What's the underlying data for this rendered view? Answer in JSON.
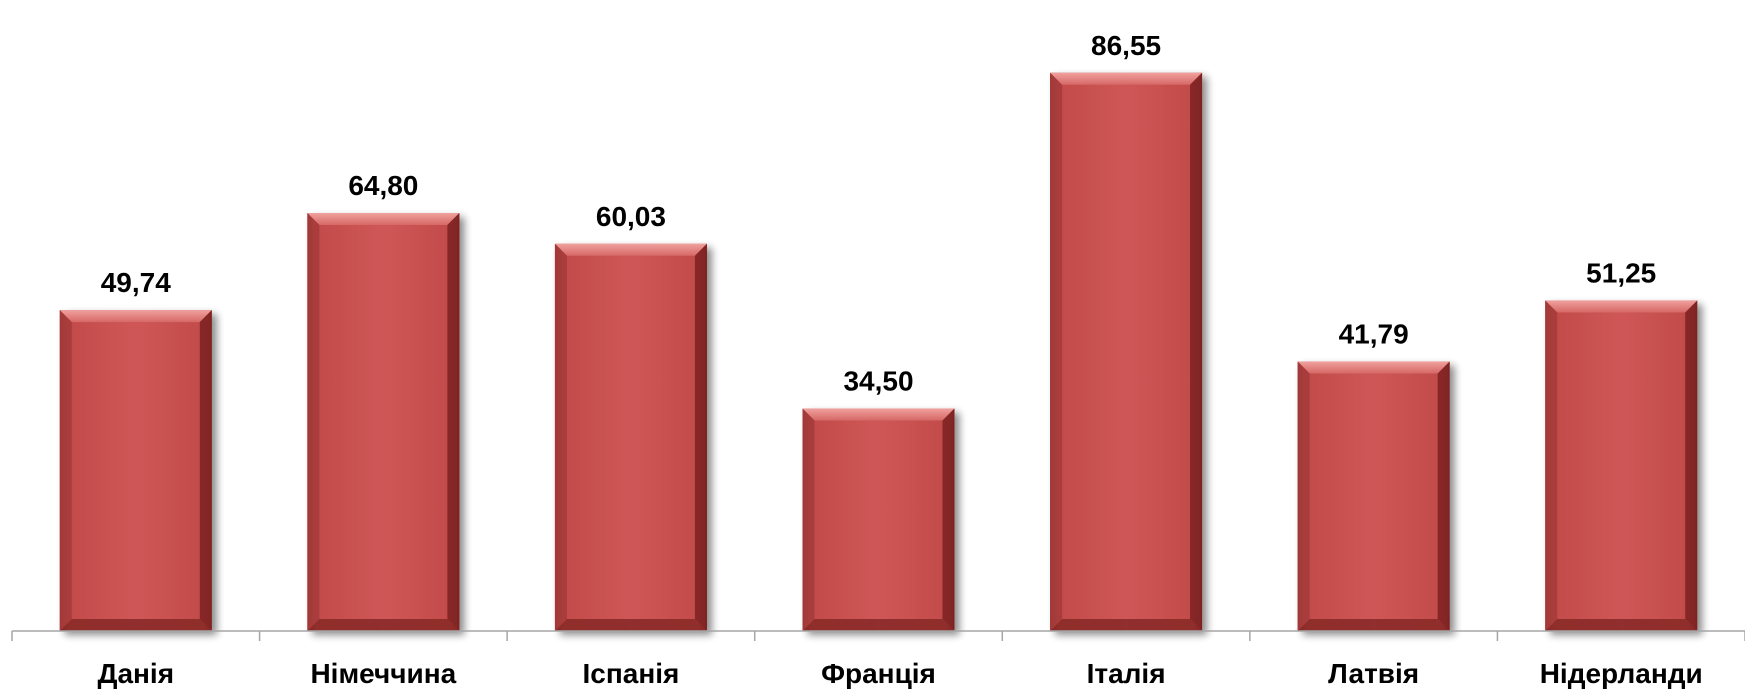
{
  "chart_data": {
    "type": "bar",
    "categories": [
      "Данія",
      "Німеччина",
      "Іспанія",
      "Франція",
      "Італія",
      "Латвія",
      "Нідерланди"
    ],
    "values": [
      49.74,
      64.8,
      60.03,
      34.5,
      86.55,
      41.79,
      51.25
    ],
    "value_labels": [
      "49,74",
      "64,80",
      "60,03",
      "34,50",
      "86,55",
      "41,79",
      "51,25"
    ],
    "title": "",
    "xlabel": "",
    "ylabel": "",
    "ylim": [
      0,
      90
    ],
    "grid": false,
    "legend": "none",
    "colors": {
      "bar_fill": "#cd5554",
      "bar_top": "#e98b88",
      "bar_edge_dark": "#7d2222",
      "axis": "#a6a6a6"
    }
  }
}
